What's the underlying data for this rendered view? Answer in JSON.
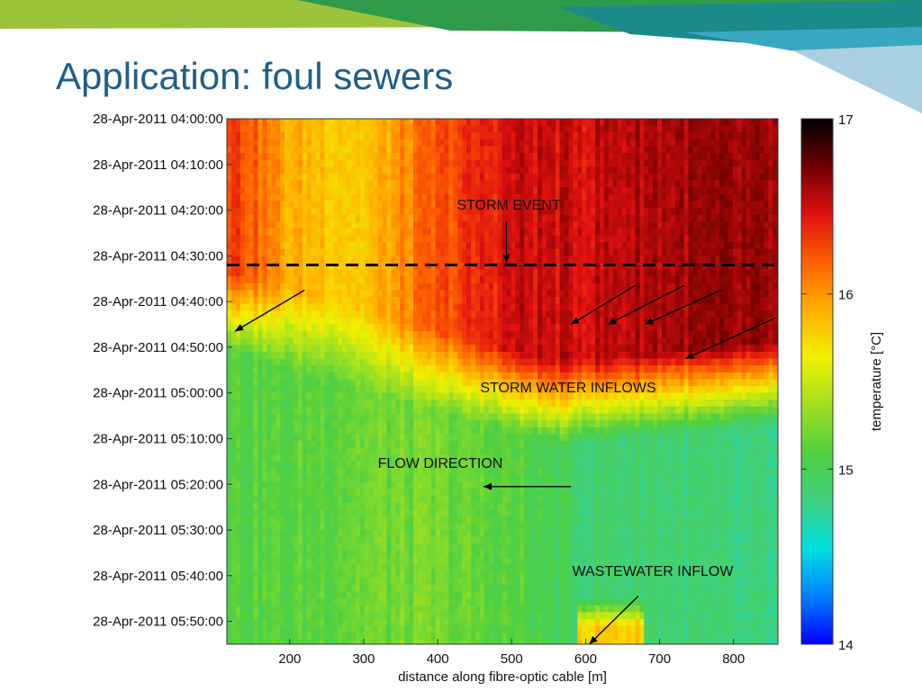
{
  "slide": {
    "title": "Application: foul sewers",
    "banner_colors": [
      "#9cc43a",
      "#2f9a4a",
      "#1b8a8a",
      "#3aa7c2",
      "#a9cfe0"
    ]
  },
  "chart_data": {
    "type": "heatmap",
    "xlabel": "distance along fibre-optic cable [m]",
    "x_ticks": [
      200,
      300,
      400,
      500,
      600,
      700,
      800
    ],
    "x_range": [
      115,
      860
    ],
    "y_ticks": [
      "28-Apr-2011 04:00:00",
      "28-Apr-2011 04:10:00",
      "28-Apr-2011 04:20:00",
      "28-Apr-2011 04:30:00",
      "28-Apr-2011 04:40:00",
      "28-Apr-2011 04:50:00",
      "28-Apr-2011 05:00:00",
      "28-Apr-2011 05:10:00",
      "28-Apr-2011 05:20:00",
      "28-Apr-2011 05:30:00",
      "28-Apr-2011 05:40:00",
      "28-Apr-2011 05:50:00"
    ],
    "y_range_minutes": [
      0,
      115
    ],
    "colorbar": {
      "label": "temperature [°C]",
      "min": 14,
      "max": 17,
      "ticks": [
        "14",
        "15",
        "16",
        "17"
      ],
      "colormap": [
        "#0000ff",
        "#0080ff",
        "#00e0e0",
        "#40d080",
        "#50d040",
        "#a0e020",
        "#f0f000",
        "#ffb000",
        "#ff6000",
        "#e01010",
        "#700000",
        "#000000"
      ]
    },
    "storm_event_time_minutes": 32,
    "annotations": {
      "storm_event": "STORM EVENT",
      "storm_water_inflows": "STORM WATER INFLOWS",
      "flow_direction": "FLOW DIRECTION",
      "wastewater_inflow": "WASTEWATER INFLOW"
    },
    "series": [
      {
        "x": 130,
        "minute_before": 16.3,
        "minute_after": 15.1
      },
      {
        "x": 200,
        "minute_before": 15.9,
        "minute_after": 15.1
      },
      {
        "x": 300,
        "minute_before": 15.8,
        "minute_after": 15.2
      },
      {
        "x": 400,
        "minute_before": 16.2,
        "minute_after": 15.2
      },
      {
        "x": 500,
        "minute_before": 16.5,
        "minute_after": 15.1
      },
      {
        "x": 600,
        "minute_before": 16.5,
        "minute_after": 14.9
      },
      {
        "x": 700,
        "minute_before": 16.6,
        "minute_after": 14.9
      },
      {
        "x": 800,
        "minute_before": 16.6,
        "minute_after": 14.8
      }
    ]
  }
}
